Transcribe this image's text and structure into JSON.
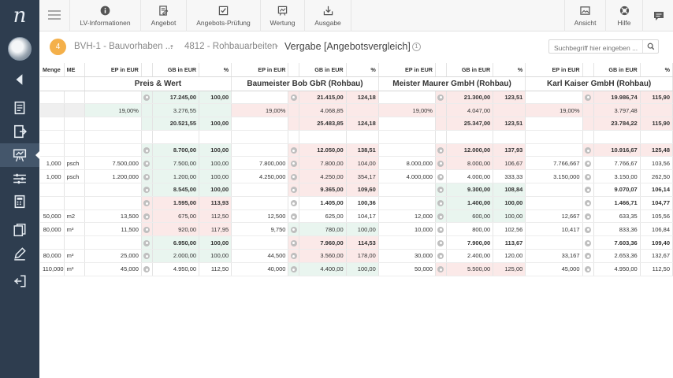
{
  "sidebar": {
    "logo": "n",
    "items": [
      {
        "name": "collapse-icon"
      },
      {
        "name": "document-icon"
      },
      {
        "name": "export-document-icon"
      },
      {
        "name": "presentation-icon"
      },
      {
        "name": "sliders-icon"
      },
      {
        "name": "calculator-icon"
      },
      {
        "name": "copy-icon"
      },
      {
        "name": "pencil-icon"
      },
      {
        "name": "logout-icon"
      }
    ]
  },
  "toolbar": {
    "buttons": [
      {
        "label": "LV-Informationen",
        "icon": "info-icon"
      },
      {
        "label": "Angebot",
        "icon": "edit-document-icon"
      },
      {
        "label": "Angebots-Prüfung",
        "icon": "checkbox-icon"
      },
      {
        "label": "Wertung",
        "icon": "chart-icon"
      },
      {
        "label": "Ausgabe",
        "icon": "download-icon"
      },
      {
        "label": "Ansicht",
        "icon": "image-icon"
      },
      {
        "label": "Hilfe",
        "icon": "lifebuoy-icon"
      }
    ]
  },
  "breadcrumb": {
    "step": "4",
    "project": "BVH-1 - Bauvorhaben ...",
    "lot": "4812 - Rohbauarbeiten",
    "current": "Vergabe [Angebotsvergleich]",
    "info": "1"
  },
  "search": {
    "placeholder": "Suchbegriff hier eingeben ..."
  },
  "table": {
    "head": {
      "menge": "Menge",
      "me": "ME",
      "ep": "EP in EUR",
      "gb": "GB in EUR",
      "pct": "%"
    },
    "bidders": [
      "Preis & Wert",
      "Baumeister Bob GbR (Rohbau)",
      "Meister Maurer GmbH (Rohbau)",
      "Karl Kaiser GmbH (Rohbau)"
    ],
    "rows": [
      {
        "type": "sum",
        "menge": "",
        "me": "",
        "cells": [
          {
            "ep": "",
            "gb": "17.245,00",
            "pct": "100,00",
            "c": "g",
            "icon": true
          },
          {
            "ep": "",
            "gb": "21.415,00",
            "pct": "124,18",
            "c": "p",
            "icon": true
          },
          {
            "ep": "",
            "gb": "21.300,00",
            "pct": "123,51",
            "c": "p",
            "icon": true
          },
          {
            "ep": "",
            "gb": "19.986,74",
            "pct": "115,90",
            "c": "p",
            "icon": true
          }
        ]
      },
      {
        "type": "vat",
        "menge": "",
        "me": "",
        "cells": [
          {
            "ep": "19,00%",
            "gb": "3.276,55",
            "pct": "",
            "c": "g",
            "icon": false
          },
          {
            "ep": "19,00%",
            "gb": "4.068,85",
            "pct": "",
            "c": "p",
            "icon": false
          },
          {
            "ep": "19,00%",
            "gb": "4.047,00",
            "pct": "",
            "c": "p",
            "icon": false
          },
          {
            "ep": "19,00%",
            "gb": "3.797,48",
            "pct": "",
            "c": "p",
            "icon": false
          }
        ]
      },
      {
        "type": "sum",
        "menge": "",
        "me": "",
        "cells": [
          {
            "ep": "",
            "gb": "20.521,55",
            "pct": "100,00",
            "c": "g",
            "icon": false
          },
          {
            "ep": "",
            "gb": "25.483,85",
            "pct": "124,18",
            "c": "p",
            "icon": false
          },
          {
            "ep": "",
            "gb": "25.347,00",
            "pct": "123,51",
            "c": "p",
            "icon": false
          },
          {
            "ep": "",
            "gb": "23.784,22",
            "pct": "115,90",
            "c": "p",
            "icon": false
          }
        ]
      },
      {
        "type": "sep",
        "menge": "",
        "me": "",
        "cells": [
          {
            "ep": "",
            "gb": "",
            "pct": "",
            "c": "",
            "icon": false
          },
          {
            "ep": "",
            "gb": "",
            "pct": "",
            "c": "",
            "icon": false
          },
          {
            "ep": "",
            "gb": "",
            "pct": "",
            "c": "",
            "icon": false
          },
          {
            "ep": "",
            "gb": "",
            "pct": "",
            "c": "",
            "icon": false
          }
        ]
      },
      {
        "type": "sum",
        "menge": "",
        "me": "",
        "cells": [
          {
            "ep": "",
            "gb": "8.700,00",
            "pct": "100,00",
            "c": "g",
            "icon": true
          },
          {
            "ep": "",
            "gb": "12.050,00",
            "pct": "138,51",
            "c": "p",
            "icon": true
          },
          {
            "ep": "",
            "gb": "12.000,00",
            "pct": "137,93",
            "c": "p",
            "icon": true
          },
          {
            "ep": "",
            "gb": "10.916,67",
            "pct": "125,48",
            "c": "p",
            "icon": true
          }
        ]
      },
      {
        "type": "item",
        "menge": "1,000",
        "me": "psch",
        "cells": [
          {
            "ep": "7.500,000",
            "gb": "7.500,00",
            "pct": "100,00",
            "c": "g",
            "icon": true
          },
          {
            "ep": "7.800,000",
            "gb": "7.800,00",
            "pct": "104,00",
            "c": "p",
            "icon": true
          },
          {
            "ep": "8.000,000",
            "gb": "8.000,00",
            "pct": "106,67",
            "c": "p",
            "icon": true
          },
          {
            "ep": "7.766,667",
            "gb": "7.766,67",
            "pct": "103,56",
            "c": "",
            "icon": true
          }
        ]
      },
      {
        "type": "item",
        "menge": "1,000",
        "me": "psch",
        "cells": [
          {
            "ep": "1.200,000",
            "gb": "1.200,00",
            "pct": "100,00",
            "c": "g",
            "icon": true
          },
          {
            "ep": "4.250,000",
            "gb": "4.250,00",
            "pct": "354,17",
            "c": "p",
            "icon": true
          },
          {
            "ep": "4.000,000",
            "gb": "4.000,00",
            "pct": "333,33",
            "c": "",
            "icon": true
          },
          {
            "ep": "3.150,000",
            "gb": "3.150,00",
            "pct": "262,50",
            "c": "",
            "icon": true
          }
        ]
      },
      {
        "type": "sum",
        "menge": "",
        "me": "",
        "cells": [
          {
            "ep": "",
            "gb": "8.545,00",
            "pct": "100,00",
            "c": "g",
            "icon": true
          },
          {
            "ep": "",
            "gb": "9.365,00",
            "pct": "109,60",
            "c": "p",
            "icon": true
          },
          {
            "ep": "",
            "gb": "9.300,00",
            "pct": "108,84",
            "c": "g",
            "icon": true
          },
          {
            "ep": "",
            "gb": "9.070,07",
            "pct": "106,14",
            "c": "",
            "icon": true
          }
        ]
      },
      {
        "type": "sum",
        "menge": "",
        "me": "",
        "cells": [
          {
            "ep": "",
            "gb": "1.595,00",
            "pct": "113,93",
            "c": "p",
            "icon": true
          },
          {
            "ep": "",
            "gb": "1.405,00",
            "pct": "100,36",
            "c": "",
            "icon": true
          },
          {
            "ep": "",
            "gb": "1.400,00",
            "pct": "100,00",
            "c": "g",
            "icon": true
          },
          {
            "ep": "",
            "gb": "1.466,71",
            "pct": "104,77",
            "c": "",
            "icon": true
          }
        ]
      },
      {
        "type": "item",
        "menge": "50,000",
        "me": "m2",
        "cells": [
          {
            "ep": "13,500",
            "gb": "675,00",
            "pct": "112,50",
            "c": "p",
            "icon": true
          },
          {
            "ep": "12,500",
            "gb": "625,00",
            "pct": "104,17",
            "c": "",
            "icon": true
          },
          {
            "ep": "12,000",
            "gb": "600,00",
            "pct": "100,00",
            "c": "g",
            "icon": true
          },
          {
            "ep": "12,667",
            "gb": "633,35",
            "pct": "105,56",
            "c": "",
            "icon": true
          }
        ]
      },
      {
        "type": "item",
        "menge": "80,000",
        "me": "m³",
        "cells": [
          {
            "ep": "11,500",
            "gb": "920,00",
            "pct": "117,95",
            "c": "p",
            "icon": true
          },
          {
            "ep": "9,750",
            "gb": "780,00",
            "pct": "100,00",
            "c": "g",
            "icon": true
          },
          {
            "ep": "10,000",
            "gb": "800,00",
            "pct": "102,56",
            "c": "",
            "icon": true
          },
          {
            "ep": "10,417",
            "gb": "833,36",
            "pct": "106,84",
            "c": "",
            "icon": true
          }
        ]
      },
      {
        "type": "sum",
        "menge": "",
        "me": "",
        "cells": [
          {
            "ep": "",
            "gb": "6.950,00",
            "pct": "100,00",
            "c": "g",
            "icon": true
          },
          {
            "ep": "",
            "gb": "7.960,00",
            "pct": "114,53",
            "c": "p",
            "icon": true
          },
          {
            "ep": "",
            "gb": "7.900,00",
            "pct": "113,67",
            "c": "",
            "icon": true
          },
          {
            "ep": "",
            "gb": "7.603,36",
            "pct": "109,40",
            "c": "",
            "icon": true
          }
        ]
      },
      {
        "type": "item",
        "menge": "80,000",
        "me": "m³",
        "cells": [
          {
            "ep": "25,000",
            "gb": "2.000,00",
            "pct": "100,00",
            "c": "g",
            "icon": true
          },
          {
            "ep": "44,500",
            "gb": "3.560,00",
            "pct": "178,00",
            "c": "p",
            "icon": true
          },
          {
            "ep": "30,000",
            "gb": "2.400,00",
            "pct": "120,00",
            "c": "",
            "icon": true
          },
          {
            "ep": "33,167",
            "gb": "2.653,36",
            "pct": "132,67",
            "c": "",
            "icon": true
          }
        ]
      },
      {
        "type": "item",
        "menge": "110,000",
        "me": "m³",
        "cells": [
          {
            "ep": "45,000",
            "gb": "4.950,00",
            "pct": "112,50",
            "c": "",
            "icon": true
          },
          {
            "ep": "40,000",
            "gb": "4.400,00",
            "pct": "100,00",
            "c": "g",
            "icon": true
          },
          {
            "ep": "50,000",
            "gb": "5.500,00",
            "pct": "125,00",
            "c": "p",
            "icon": true
          },
          {
            "ep": "45,000",
            "gb": "4.950,00",
            "pct": "112,50",
            "c": "",
            "icon": true
          }
        ]
      }
    ]
  },
  "colors": {
    "sidebar": "#2e3d4f",
    "accent": "#f4b04a",
    "better": "#e9f5ef",
    "worse": "#fbe9e8"
  }
}
